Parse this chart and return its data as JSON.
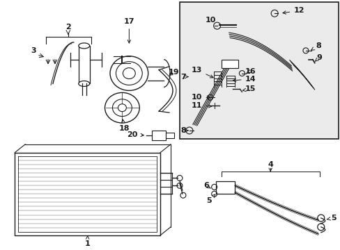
{
  "bg_color": "#ffffff",
  "box_bg": "#ebebeb",
  "line_color": "#1a1a1a",
  "fig_width": 4.89,
  "fig_height": 3.6,
  "dpi": 100
}
